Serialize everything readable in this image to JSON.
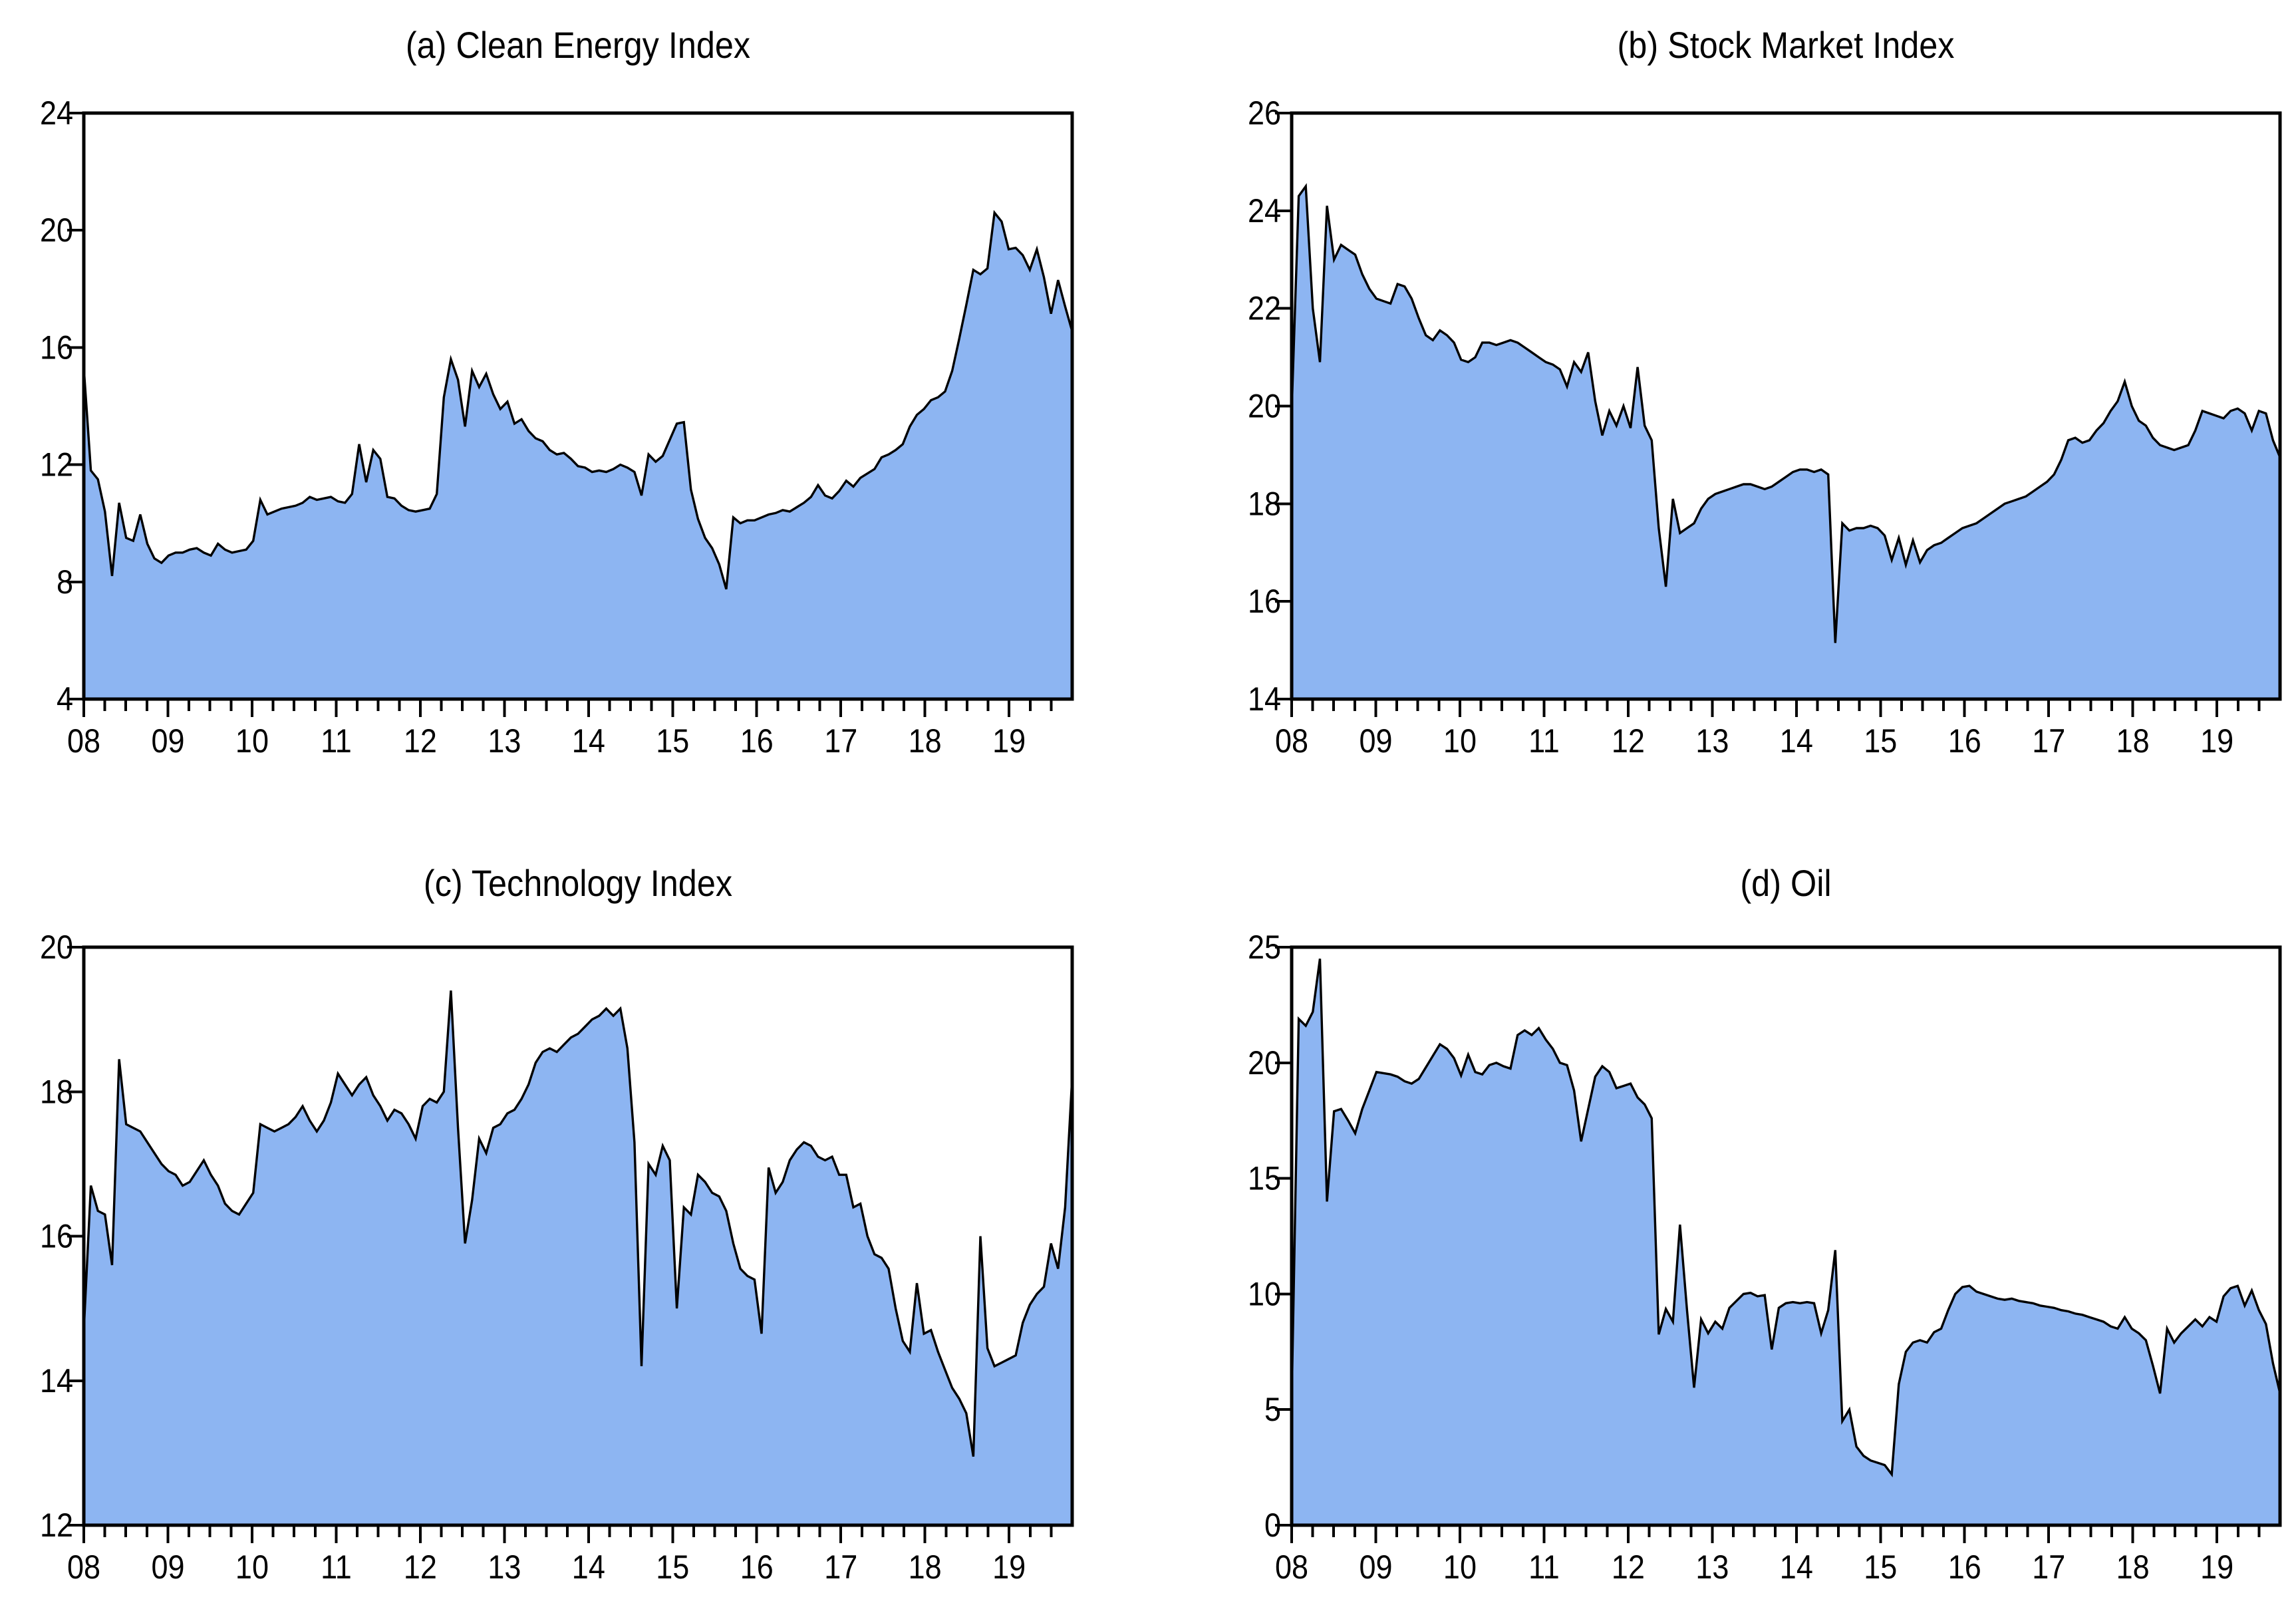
{
  "figure": {
    "background": "#ffffff",
    "area_fill_color": "#8db5f2",
    "line_color": "#000000",
    "axis_color": "#000000"
  },
  "chart_data": [
    {
      "id": "a",
      "type": "area",
      "title": "(a) Clean Energy Index",
      "xlabel": "",
      "ylabel": "",
      "ylim": [
        4,
        24
      ],
      "yticks": [
        4,
        8,
        12,
        16,
        20,
        24
      ],
      "x_tick_labels": [
        "08",
        "09",
        "10",
        "11",
        "12",
        "13",
        "14",
        "15",
        "16",
        "17",
        "18",
        "19"
      ],
      "x_minor_per_year": 4,
      "x_span_years": 11.75,
      "x_start": 2008,
      "frequency": "monthly",
      "values": [
        15.3,
        11.8,
        11.5,
        10.4,
        8.2,
        10.7,
        9.5,
        9.4,
        10.3,
        9.3,
        8.8,
        8.65,
        8.9,
        9.0,
        9.0,
        9.1,
        9.15,
        9.0,
        8.9,
        9.3,
        9.1,
        9.0,
        9.05,
        9.1,
        9.4,
        10.8,
        10.3,
        10.4,
        10.5,
        10.55,
        10.6,
        10.7,
        10.9,
        10.8,
        10.85,
        10.9,
        10.75,
        10.7,
        11.0,
        12.7,
        11.4,
        12.5,
        12.2,
        10.9,
        10.85,
        10.6,
        10.45,
        10.4,
        10.45,
        10.5,
        11.0,
        14.3,
        15.6,
        14.9,
        13.3,
        15.2,
        14.65,
        15.1,
        14.4,
        13.9,
        14.15,
        13.4,
        13.55,
        13.15,
        12.9,
        12.8,
        12.5,
        12.35,
        12.4,
        12.2,
        11.95,
        11.9,
        11.75,
        11.8,
        11.75,
        11.85,
        12.0,
        11.9,
        11.75,
        10.95,
        12.35,
        12.1,
        12.3,
        12.85,
        13.4,
        13.45,
        11.15,
        10.15,
        9.5,
        9.15,
        8.6,
        7.75,
        10.2,
        10.0,
        10.1,
        10.1,
        10.2,
        10.3,
        10.35,
        10.45,
        10.4,
        10.55,
        10.7,
        10.9,
        11.3,
        10.95,
        10.85,
        11.1,
        11.45,
        11.25,
        11.55,
        11.7,
        11.85,
        12.25,
        12.35,
        12.5,
        12.7,
        13.3,
        13.7,
        13.9,
        14.2,
        14.3,
        14.5,
        15.2,
        16.3,
        17.45,
        18.65,
        18.5,
        18.7,
        20.6,
        20.3,
        19.35,
        19.4,
        19.15,
        18.65,
        19.35,
        18.4,
        17.15,
        18.3,
        17.4,
        16.55
      ]
    },
    {
      "id": "b",
      "type": "area",
      "title": "(b) Stock Market Index",
      "xlabel": "",
      "ylabel": "",
      "ylim": [
        14,
        26
      ],
      "yticks": [
        14,
        16,
        18,
        20,
        22,
        24,
        26
      ],
      "x_tick_labels": [
        "08",
        "09",
        "10",
        "11",
        "12",
        "13",
        "14",
        "15",
        "16",
        "17",
        "18",
        "19"
      ],
      "x_minor_per_year": 4,
      "x_span_years": 11.75,
      "x_start": 2008,
      "frequency": "monthly",
      "values": [
        19.9,
        24.3,
        24.5,
        22.0,
        20.9,
        24.1,
        23.0,
        23.3,
        23.2,
        23.1,
        22.7,
        22.4,
        22.2,
        22.15,
        22.1,
        22.5,
        22.45,
        22.2,
        21.8,
        21.45,
        21.35,
        21.55,
        21.45,
        21.3,
        20.95,
        20.9,
        21.0,
        21.3,
        21.3,
        21.25,
        21.3,
        21.35,
        21.3,
        21.2,
        21.1,
        21.0,
        20.9,
        20.85,
        20.75,
        20.4,
        20.9,
        20.7,
        21.1,
        20.1,
        19.4,
        19.9,
        19.6,
        20.0,
        19.55,
        20.8,
        19.6,
        19.3,
        17.5,
        16.3,
        18.1,
        17.4,
        17.5,
        17.6,
        17.9,
        18.1,
        18.2,
        18.25,
        18.3,
        18.35,
        18.4,
        18.4,
        18.35,
        18.3,
        18.35,
        18.45,
        18.55,
        18.65,
        18.7,
        18.7,
        18.65,
        18.7,
        18.6,
        15.15,
        17.6,
        17.45,
        17.5,
        17.5,
        17.55,
        17.5,
        17.35,
        16.85,
        17.3,
        16.75,
        17.25,
        16.8,
        17.05,
        17.15,
        17.2,
        17.3,
        17.4,
        17.5,
        17.55,
        17.6,
        17.7,
        17.8,
        17.9,
        18.0,
        18.05,
        18.1,
        18.15,
        18.25,
        18.35,
        18.45,
        18.6,
        18.9,
        19.3,
        19.35,
        19.25,
        19.3,
        19.5,
        19.65,
        19.9,
        20.1,
        20.5,
        20.0,
        19.7,
        19.6,
        19.35,
        19.2,
        19.15,
        19.1,
        19.15,
        19.2,
        19.5,
        19.9,
        19.85,
        19.8,
        19.75,
        19.9,
        19.95,
        19.85,
        19.5,
        19.9,
        19.85,
        19.3,
        18.95
      ]
    },
    {
      "id": "c",
      "type": "area",
      "title": "(c) Technology Index",
      "xlabel": "",
      "ylabel": "",
      "ylim": [
        12,
        20
      ],
      "yticks": [
        12,
        14,
        16,
        18,
        20
      ],
      "x_tick_labels": [
        "08",
        "09",
        "10",
        "11",
        "12",
        "13",
        "14",
        "15",
        "16",
        "17",
        "18",
        "19"
      ],
      "x_minor_per_year": 4,
      "x_span_years": 11.75,
      "x_start": 2008,
      "frequency": "monthly",
      "values": [
        14.7,
        16.7,
        16.35,
        16.3,
        15.6,
        18.45,
        17.55,
        17.5,
        17.45,
        17.3,
        17.15,
        17.0,
        16.9,
        16.85,
        16.7,
        16.75,
        16.9,
        17.05,
        16.85,
        16.7,
        16.45,
        16.35,
        16.3,
        16.45,
        16.6,
        17.55,
        17.5,
        17.45,
        17.5,
        17.55,
        17.65,
        17.8,
        17.6,
        17.45,
        17.6,
        17.85,
        18.25,
        18.1,
        17.95,
        18.1,
        18.2,
        17.95,
        17.8,
        17.6,
        17.75,
        17.7,
        17.55,
        17.35,
        17.8,
        17.9,
        17.85,
        18.0,
        19.4,
        17.5,
        15.9,
        16.5,
        17.35,
        17.15,
        17.5,
        17.55,
        17.7,
        17.75,
        17.9,
        18.1,
        18.4,
        18.55,
        18.6,
        18.55,
        18.65,
        18.75,
        18.8,
        18.9,
        19.0,
        19.05,
        19.15,
        19.05,
        19.15,
        18.6,
        17.3,
        14.2,
        17.0,
        16.85,
        17.25,
        17.05,
        15.0,
        16.4,
        16.3,
        16.85,
        16.75,
        16.6,
        16.55,
        16.35,
        15.9,
        15.55,
        15.45,
        15.4,
        14.65,
        16.95,
        16.6,
        16.75,
        17.05,
        17.2,
        17.3,
        17.25,
        17.1,
        17.05,
        17.1,
        16.85,
        16.85,
        16.4,
        16.45,
        16.0,
        15.75,
        15.7,
        15.55,
        15.0,
        14.55,
        14.4,
        15.35,
        14.65,
        14.7,
        14.4,
        14.15,
        13.9,
        13.75,
        13.55,
        12.95,
        16.0,
        14.45,
        14.2,
        14.25,
        14.3,
        14.35,
        14.8,
        15.05,
        15.2,
        15.3,
        15.9,
        15.55,
        16.4,
        18.2
      ]
    },
    {
      "id": "d",
      "type": "area",
      "title": "(d) Oil",
      "xlabel": "",
      "ylabel": "",
      "ylim": [
        0,
        25
      ],
      "yticks": [
        0,
        5,
        10,
        15,
        20,
        25
      ],
      "x_tick_labels": [
        "08",
        "09",
        "10",
        "11",
        "12",
        "13",
        "14",
        "15",
        "16",
        "17",
        "18",
        "19"
      ],
      "x_minor_per_year": 4,
      "x_span_years": 11.75,
      "x_start": 2008,
      "frequency": "monthly",
      "values": [
        5.4,
        21.9,
        21.6,
        22.2,
        24.5,
        14.0,
        17.9,
        18.0,
        17.5,
        16.95,
        18.0,
        18.8,
        19.6,
        19.55,
        19.5,
        19.4,
        19.2,
        19.1,
        19.3,
        19.8,
        20.3,
        20.8,
        20.6,
        20.2,
        19.45,
        20.35,
        19.6,
        19.5,
        19.9,
        20.0,
        19.85,
        19.75,
        21.2,
        21.4,
        21.2,
        21.5,
        21.0,
        20.6,
        20.0,
        19.9,
        18.8,
        16.6,
        18.0,
        19.4,
        19.85,
        19.6,
        18.9,
        19.0,
        19.1,
        18.5,
        18.2,
        17.6,
        8.25,
        9.35,
        8.8,
        13.0,
        9.3,
        5.95,
        8.9,
        8.3,
        8.8,
        8.5,
        9.4,
        9.7,
        10.0,
        10.05,
        9.9,
        9.95,
        7.6,
        9.4,
        9.6,
        9.65,
        9.6,
        9.65,
        9.6,
        8.3,
        9.3,
        11.9,
        4.5,
        5.0,
        3.4,
        3.0,
        2.8,
        2.7,
        2.6,
        2.2,
        6.1,
        7.5,
        7.9,
        8.0,
        7.9,
        8.35,
        8.5,
        9.3,
        10.0,
        10.3,
        10.35,
        10.1,
        10.0,
        9.9,
        9.8,
        9.75,
        9.8,
        9.7,
        9.65,
        9.6,
        9.5,
        9.45,
        9.4,
        9.3,
        9.25,
        9.15,
        9.1,
        9.0,
        8.9,
        8.8,
        8.6,
        8.5,
        9.0,
        8.5,
        8.3,
        8.0,
        6.9,
        5.7,
        8.5,
        7.9,
        8.3,
        8.6,
        8.9,
        8.6,
        9.0,
        8.8,
        9.9,
        10.25,
        10.35,
        9.5,
        10.15,
        9.3,
        8.7,
        7.0,
        5.7
      ]
    }
  ]
}
